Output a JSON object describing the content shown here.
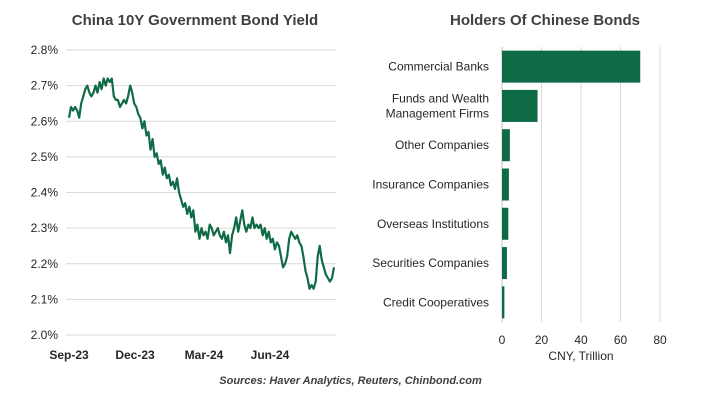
{
  "chart_data": [
    {
      "type": "line",
      "title": "China 10Y Government Bond Yield",
      "ylim": [
        2.0,
        2.8
      ],
      "yticks": [
        "2.0%",
        "2.1%",
        "2.2%",
        "2.3%",
        "2.4%",
        "2.5%",
        "2.6%",
        "2.7%",
        "2.8%"
      ],
      "xticks": [
        "Sep-23",
        "Dec-23",
        "Mar-24",
        "Jun-24"
      ],
      "grid": true,
      "line_color": "#0e6b45",
      "series": [
        {
          "values": [
            2.61,
            2.64,
            2.63,
            2.64,
            2.63,
            2.61,
            2.65,
            2.67,
            2.69,
            2.7,
            2.68,
            2.67,
            2.68,
            2.7,
            2.68,
            2.71,
            2.69,
            2.72,
            2.7,
            2.72,
            2.71,
            2.72,
            2.67,
            2.66,
            2.66,
            2.64,
            2.65,
            2.66,
            2.65,
            2.67,
            2.7,
            2.68,
            2.65,
            2.64,
            2.62,
            2.61,
            2.58,
            2.6,
            2.56,
            2.57,
            2.52,
            2.55,
            2.5,
            2.51,
            2.48,
            2.49,
            2.45,
            2.47,
            2.44,
            2.45,
            2.42,
            2.43,
            2.41,
            2.44,
            2.4,
            2.38,
            2.36,
            2.37,
            2.34,
            2.36,
            2.33,
            2.35,
            2.29,
            2.31,
            2.27,
            2.3,
            2.28,
            2.29,
            2.27,
            2.31,
            2.3,
            2.28,
            2.29,
            2.3,
            2.28,
            2.27,
            2.29,
            2.26,
            2.28,
            2.23,
            2.28,
            2.3,
            2.33,
            2.29,
            2.32,
            2.35,
            2.31,
            2.29,
            2.31,
            2.3,
            2.33,
            2.3,
            2.31,
            2.3,
            2.31,
            2.28,
            2.3,
            2.27,
            2.29,
            2.26,
            2.27,
            2.24,
            2.26,
            2.25,
            2.22,
            2.19,
            2.2,
            2.22,
            2.27,
            2.29,
            2.28,
            2.27,
            2.28,
            2.26,
            2.25,
            2.22,
            2.18,
            2.16,
            2.13,
            2.14,
            2.13,
            2.15,
            2.22,
            2.25,
            2.21,
            2.19,
            2.17,
            2.16,
            2.15,
            2.16,
            2.19
          ]
        }
      ]
    },
    {
      "type": "bar",
      "orientation": "horizontal",
      "title": "Holders Of Chinese Bonds",
      "categories": [
        "Commercial Banks",
        "Funds and Wealth Management Firms",
        "Other Companies",
        "Insurance Companies",
        "Overseas Institutions",
        "Securities Companies",
        "Credit Cooperatives"
      ],
      "category_lines": [
        [
          "Commercial Banks"
        ],
        [
          "Funds and Wealth",
          "Management Firms"
        ],
        [
          "Other Companies"
        ],
        [
          "Insurance Companies"
        ],
        [
          "Overseas Institutions"
        ],
        [
          "Securities Companies"
        ],
        [
          "Credit Cooperatives"
        ]
      ],
      "values": [
        70,
        18,
        4,
        3.5,
        3.2,
        2.5,
        1.2
      ],
      "xlim": [
        0,
        80
      ],
      "xticks": [
        "0",
        "20",
        "40",
        "60",
        "80"
      ],
      "xlabel": "CNY, Trillion",
      "bar_color": "#0e6b45"
    }
  ],
  "source": "Sources: Haver Analytics, Reuters, Chinbond.com"
}
